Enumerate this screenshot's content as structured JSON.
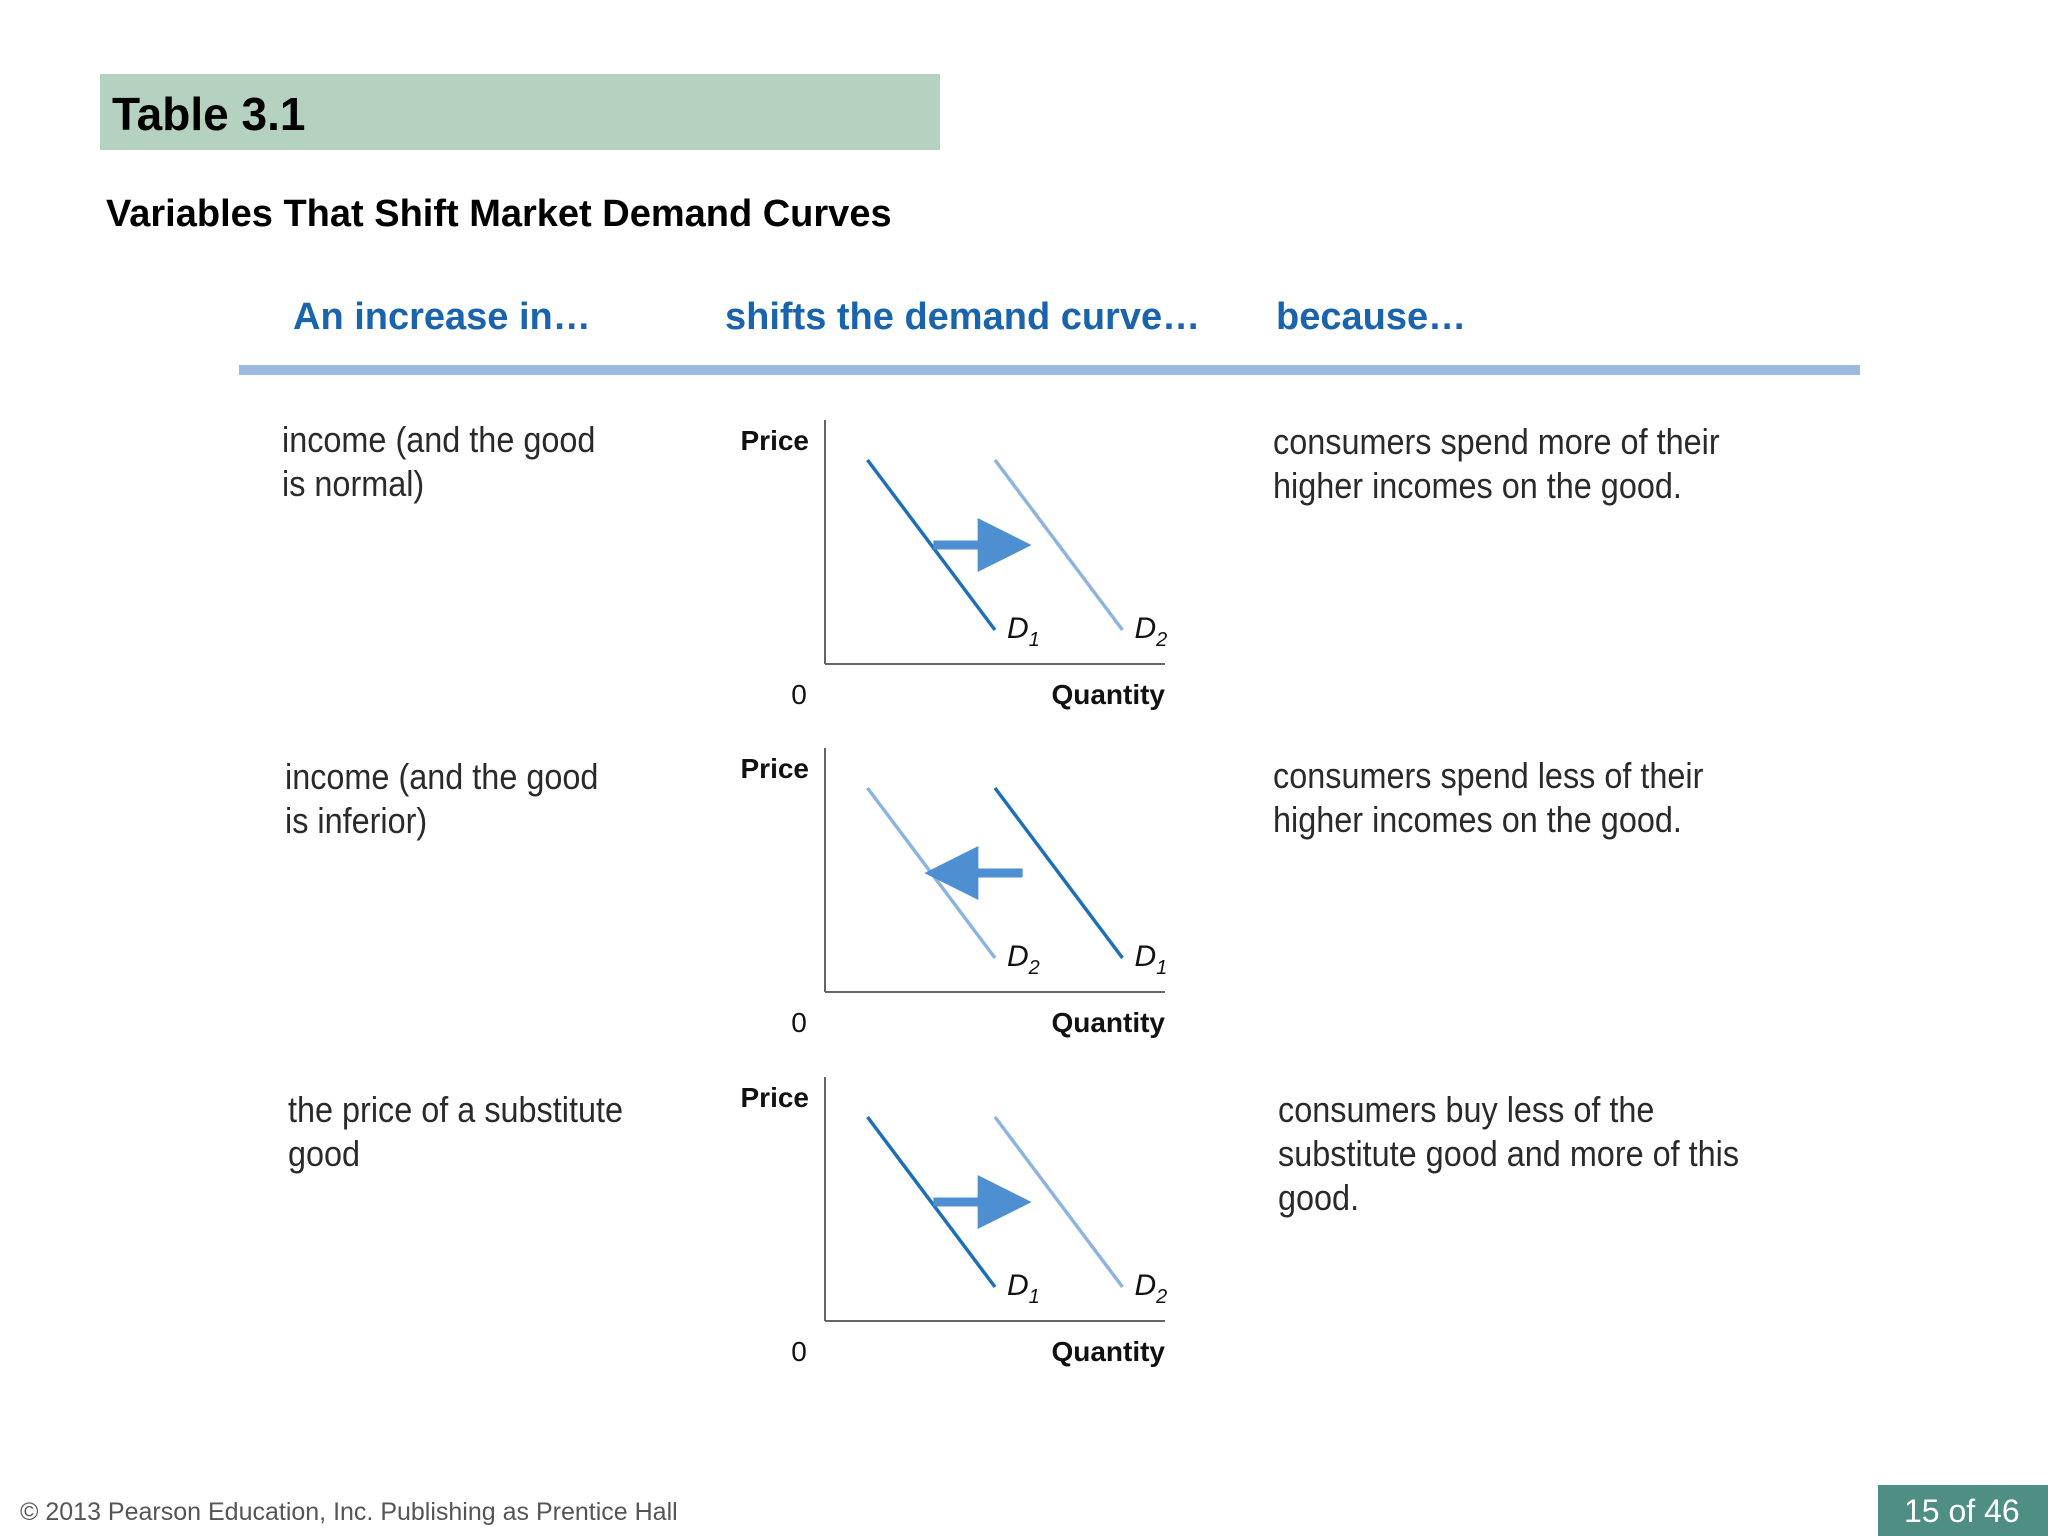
{
  "slide": {
    "title": "Table 3.1",
    "subtitle": "Variables That Shift Market Demand Curves",
    "headers": [
      "An increase in…",
      "shifts the demand curve…",
      "because…"
    ],
    "rows": [
      {
        "variable": [
          "income (and the good",
          "is normal)"
        ],
        "reason": [
          "consumers spend more of their",
          "higher incomes on the good."
        ]
      },
      {
        "variable": [
          "income (and the good",
          "is inferior)"
        ],
        "reason": [
          "consumers spend less of their",
          "higher incomes on the good."
        ]
      },
      {
        "variable": [
          "the price of a substitute",
          "good"
        ],
        "reason": [
          "consumers buy less of the",
          "substitute good and more of this",
          "good."
        ]
      }
    ],
    "footer": "© 2013 Pearson Education, Inc. Publishing as Prentice Hall",
    "page_indicator": "15 of 46"
  },
  "graph_labels": {
    "ylabel": "Price",
    "xlabel": "Quantity",
    "origin": "0"
  },
  "colors": {
    "title_bar": "#b5d2c1",
    "header_text": "#1a64ad",
    "rule": "#9db9e0",
    "curve_dark": "#1f6fb8",
    "curve_light": "#8fb3df",
    "arrow": "#4d8fd0",
    "page_badge": "#4f8e85"
  },
  "chart_data": [
    {
      "type": "line",
      "xlabel": "Quantity",
      "ylabel": "Price",
      "origin_label": "0",
      "series": [
        {
          "name": "D1",
          "role": "initial",
          "x": [
            1,
            4
          ],
          "y": [
            6,
            1
          ]
        },
        {
          "name": "D2",
          "role": "shifted",
          "x": [
            4,
            7
          ],
          "y": [
            6,
            1
          ]
        }
      ],
      "shift": "right",
      "xlim": [
        0,
        8
      ],
      "ylim": [
        0,
        7
      ]
    },
    {
      "type": "line",
      "xlabel": "Quantity",
      "ylabel": "Price",
      "origin_label": "0",
      "series": [
        {
          "name": "D2",
          "role": "shifted",
          "x": [
            1,
            4
          ],
          "y": [
            6,
            1
          ]
        },
        {
          "name": "D1",
          "role": "initial",
          "x": [
            4,
            7
          ],
          "y": [
            6,
            1
          ]
        }
      ],
      "shift": "left",
      "xlim": [
        0,
        8
      ],
      "ylim": [
        0,
        7
      ]
    },
    {
      "type": "line",
      "xlabel": "Quantity",
      "ylabel": "Price",
      "origin_label": "0",
      "series": [
        {
          "name": "D1",
          "role": "initial",
          "x": [
            1,
            4
          ],
          "y": [
            6,
            1
          ]
        },
        {
          "name": "D2",
          "role": "shifted",
          "x": [
            4,
            7
          ],
          "y": [
            6,
            1
          ]
        }
      ],
      "shift": "right",
      "xlim": [
        0,
        8
      ],
      "ylim": [
        0,
        7
      ]
    }
  ]
}
